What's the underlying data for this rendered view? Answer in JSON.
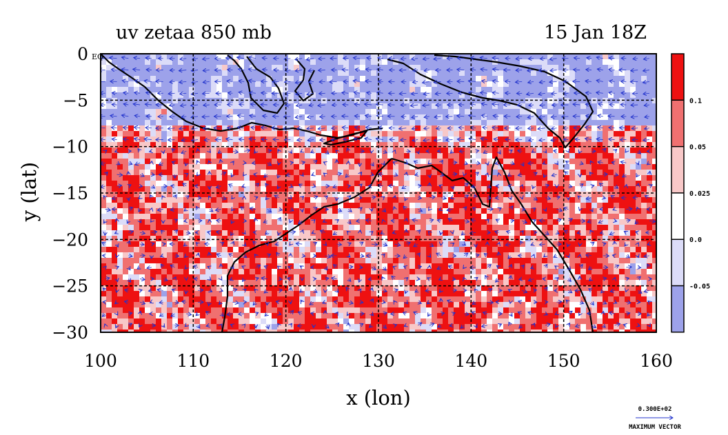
{
  "chart_data": {
    "type": "heatmap",
    "title_left": "uv zetaa 850 mb",
    "title_right": "15 Jan 18Z",
    "xlabel": "x (lon)",
    "ylabel": "y (lat)",
    "xlim": [
      100,
      160
    ],
    "ylim": [
      -30,
      0
    ],
    "x_ticks": [
      100,
      110,
      120,
      130,
      140,
      150,
      160
    ],
    "y_ticks": [
      0,
      -5,
      -10,
      -15,
      -20,
      -25,
      -30
    ],
    "y_tick_labels": [
      "0",
      "−5",
      "−10",
      "−15",
      "−20",
      "−25",
      "−30"
    ],
    "corner_label": "EQ",
    "grid": true,
    "colorbar": {
      "levels": [
        {
          "label": "0.1",
          "value": 0.1
        },
        {
          "label": "0.05",
          "value": 0.05
        },
        {
          "label": "0.025",
          "value": 0.025
        },
        {
          "label": "0.0",
          "value": 0.0
        },
        {
          "label": "-0.05",
          "value": -0.05
        }
      ],
      "colors": [
        "#ee1111",
        "#f07070",
        "#f8c8c8",
        "#ffffff",
        "#dcdcf8",
        "#9da2ea"
      ]
    },
    "vector_key": {
      "value_label": "0.300E+02",
      "caption": "MAXIMUM VECTOR"
    },
    "colors": {
      "strong_positive": "#ee1111",
      "positive": "#f07070",
      "weak_positive": "#f8c8c8",
      "near_zero": "#ffffff",
      "weak_negative": "#dcdcf8",
      "negative": "#9da2ea",
      "vectors": "#2233cc",
      "coastline": "#000000"
    }
  }
}
